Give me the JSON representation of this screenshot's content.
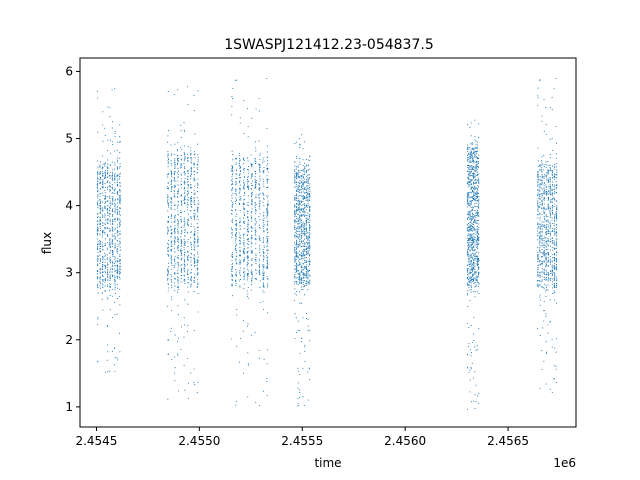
{
  "chart_data": {
    "type": "scatter",
    "title": "1SWASPJ121412.23-054837.5",
    "xlabel": "time",
    "ylabel": "flux",
    "x_offset_label": "1e6",
    "xlim": [
      2454420,
      2456830
    ],
    "ylim": [
      0.7,
      6.2
    ],
    "xticks": [
      2454500,
      2455000,
      2455500,
      2456000,
      2456500
    ],
    "xtick_labels": [
      "2.4545",
      "2.4550",
      "2.4555",
      "2.4560",
      "2.4565"
    ],
    "yticks": [
      1,
      2,
      3,
      4,
      5,
      6
    ],
    "ytick_labels": [
      "1",
      "2",
      "3",
      "4",
      "5",
      "6"
    ],
    "grid": false,
    "marker_color": "#1f77b4",
    "clusters": [
      {
        "x_range": [
          2454500,
          2454620
        ],
        "y_core": [
          2.8,
          4.6
        ],
        "y_extent": [
          1.5,
          5.75
        ]
      },
      {
        "x_range": [
          2454840,
          2455000
        ],
        "y_core": [
          2.8,
          4.8
        ],
        "y_extent": [
          1.1,
          5.8
        ]
      },
      {
        "x_range": [
          2455150,
          2455340
        ],
        "y_core": [
          2.8,
          4.7
        ],
        "y_extent": [
          0.95,
          5.9
        ]
      },
      {
        "x_range": [
          2455460,
          2455540
        ],
        "y_core": [
          2.8,
          4.6
        ],
        "y_extent": [
          1.0,
          5.1
        ]
      },
      {
        "x_range": [
          2456300,
          2456360
        ],
        "y_core": [
          2.8,
          4.9
        ],
        "y_extent": [
          0.95,
          5.3
        ]
      },
      {
        "x_range": [
          2456640,
          2456740
        ],
        "y_core": [
          2.8,
          4.6
        ],
        "y_extent": [
          1.15,
          5.9
        ]
      }
    ]
  }
}
